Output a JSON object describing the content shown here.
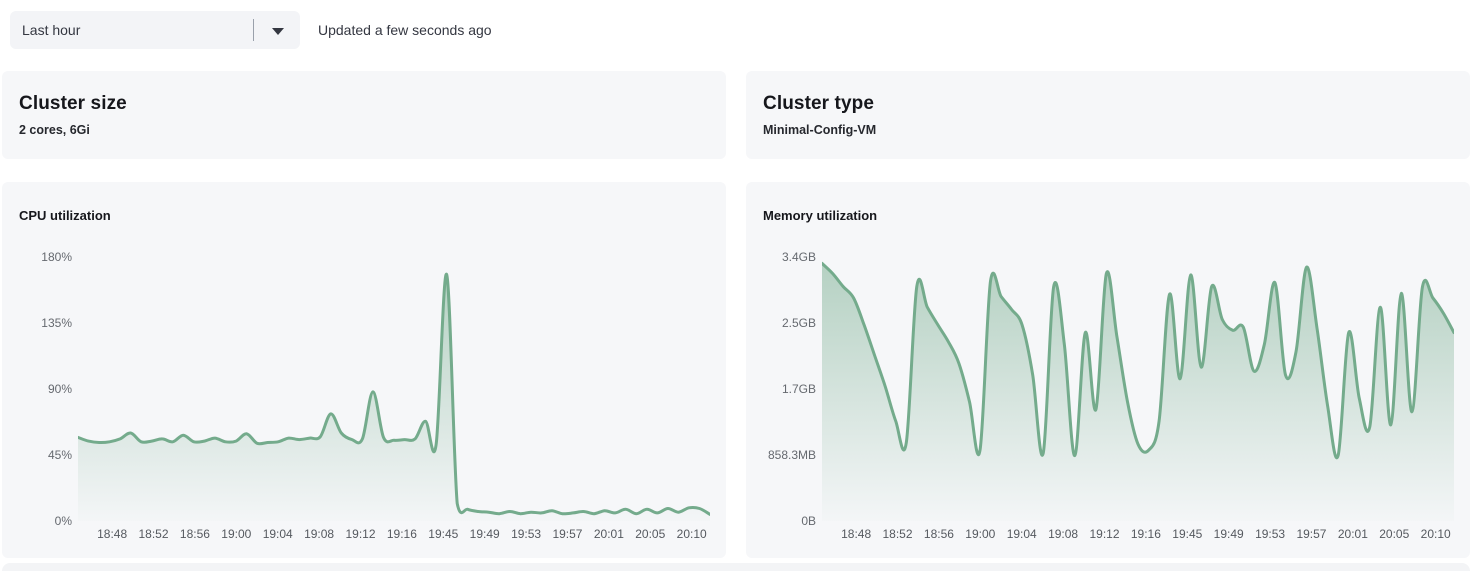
{
  "toolbar": {
    "time_range_label": "Last hour",
    "updated_text": "Updated a few seconds ago"
  },
  "cards": {
    "cluster_size": {
      "title": "Cluster size",
      "value": "2 cores, 6Gi"
    },
    "cluster_type": {
      "title": "Cluster type",
      "value": "Minimal-Config-VM"
    }
  },
  "colors": {
    "accent_green": "#74ab8c",
    "card_background": "#f6f7f9",
    "axis_text": "#65696f"
  },
  "chart_data": [
    {
      "type": "area",
      "title": "CPU utilization",
      "xlabel": "",
      "ylabel": "",
      "grid": false,
      "legend_position": "none",
      "ylim": [
        0,
        180
      ],
      "y_ticks": [
        "180%",
        "135%",
        "90%",
        "45%",
        "0%"
      ],
      "x_ticks": [
        "18:48",
        "18:52",
        "18:56",
        "19:00",
        "19:04",
        "19:08",
        "19:12",
        "19:16",
        "19:45",
        "19:49",
        "19:53",
        "19:57",
        "20:01",
        "20:05",
        "20:10"
      ],
      "series": [
        {
          "name": "CPU utilization (%)",
          "values": [
            57,
            54.5,
            53.5,
            54,
            56,
            60,
            54,
            54.5,
            56,
            54,
            58.5,
            54,
            54.5,
            56.5,
            54,
            54.5,
            59.5,
            53,
            53.5,
            54,
            56.5,
            55.5,
            56.5,
            57.5,
            73,
            60,
            55.5,
            56,
            88,
            57,
            55,
            55.5,
            56,
            68,
            52,
            168,
            12,
            8,
            6.5,
            6,
            5,
            6.5,
            5,
            6,
            5.5,
            7,
            5,
            5.5,
            6.5,
            5,
            7,
            5.5,
            8,
            5,
            8,
            5.5,
            8.5,
            6,
            9,
            8.5,
            4.5
          ]
        }
      ]
    },
    {
      "type": "area",
      "title": "Memory utilization",
      "xlabel": "",
      "ylabel": "",
      "grid": false,
      "legend_position": "none",
      "ylim_gb": [
        0,
        3.4333
      ],
      "y_ticks": [
        "3.4GB",
        "2.5GB",
        "1.7GB",
        "858.3MB",
        "0B"
      ],
      "x_ticks": [
        "18:48",
        "18:52",
        "18:56",
        "19:00",
        "19:04",
        "19:08",
        "19:12",
        "19:16",
        "19:45",
        "19:49",
        "19:53",
        "19:57",
        "20:01",
        "20:05",
        "20:10"
      ],
      "series": [
        {
          "name": "Memory utilization (GB)",
          "values": [
            3.35,
            3.22,
            3.05,
            2.9,
            2.55,
            2.15,
            1.75,
            1.3,
            1.02,
            3.05,
            2.78,
            2.55,
            2.33,
            2.05,
            1.55,
            0.92,
            3.12,
            2.92,
            2.75,
            2.55,
            1.9,
            0.88,
            3.05,
            2.3,
            0.85,
            2.45,
            1.45,
            3.22,
            2.4,
            1.55,
            1.0,
            0.92,
            1.3,
            2.95,
            1.85,
            3.2,
            2.0,
            3.05,
            2.62,
            2.48,
            2.52,
            1.95,
            2.3,
            3.1,
            1.9,
            2.2,
            3.3,
            2.5,
            1.5,
            0.85,
            2.45,
            1.6,
            1.22,
            2.78,
            1.25,
            2.96,
            1.42,
            3.04,
            2.9,
            2.7,
            2.45
          ]
        }
      ]
    }
  ]
}
